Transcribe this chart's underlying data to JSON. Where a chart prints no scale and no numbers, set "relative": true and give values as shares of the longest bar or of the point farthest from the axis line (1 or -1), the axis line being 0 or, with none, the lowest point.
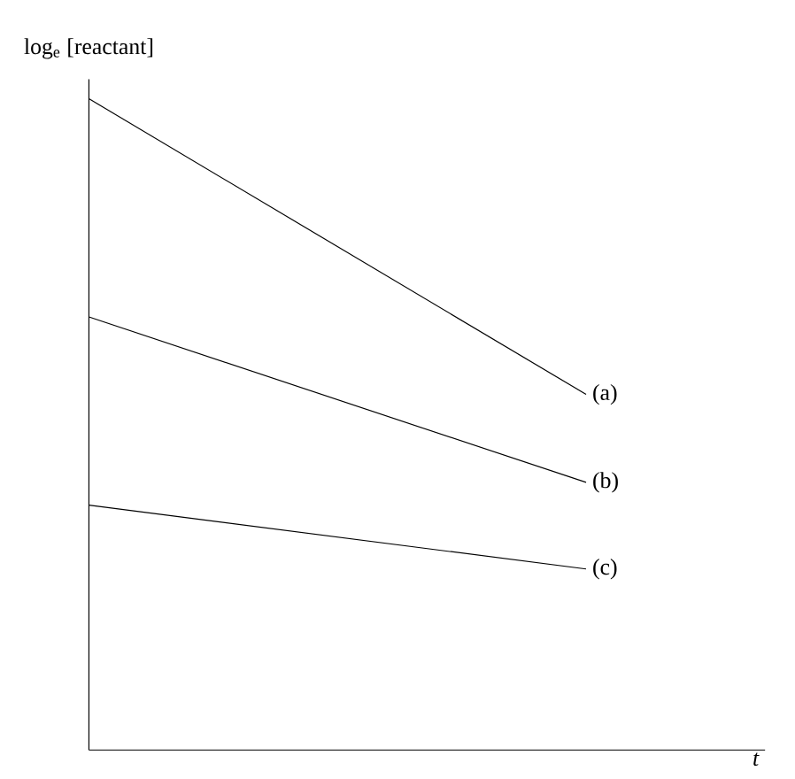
{
  "chart_data": {
    "type": "line",
    "relative": true,
    "ylabel": "log$_{e}$ [reactant]",
    "xlabel": "t",
    "categories": [
      null,
      null
    ],
    "series": [
      {
        "name": "(a)",
        "color": "#000000",
        "values": [
          1,
          0.546
        ]
      },
      {
        "name": "(b)",
        "color": "#000000",
        "values": [
          0.665,
          0.411
        ]
      },
      {
        "name": "(c)",
        "color": "#000000",
        "values": [
          0.376,
          0.278
        ]
      }
    ]
  }
}
